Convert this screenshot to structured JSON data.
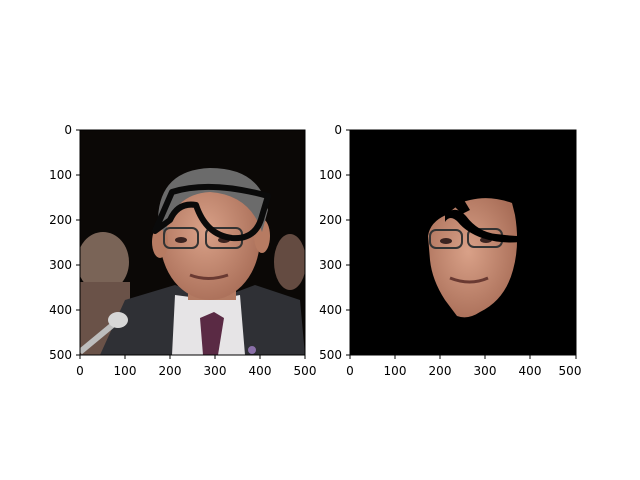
{
  "figure": {
    "panels": [
      {
        "name": "original-photo",
        "x_ticks": [
          "0",
          "100",
          "200",
          "300",
          "400",
          "500"
        ],
        "y_ticks": [
          "0",
          "100",
          "200",
          "300",
          "400",
          "500"
        ]
      },
      {
        "name": "masked-face",
        "x_ticks": [
          "0",
          "100",
          "200",
          "300",
          "400",
          "500"
        ],
        "y_ticks": [
          "0",
          "100",
          "200",
          "300",
          "400",
          "500"
        ]
      }
    ]
  },
  "chart_data": [
    {
      "type": "image",
      "xlim": [
        0,
        500
      ],
      "ylim": [
        500,
        0
      ],
      "x_ticks": [
        0,
        100,
        200,
        300,
        400,
        500
      ],
      "y_ticks": [
        0,
        100,
        200,
        300,
        400,
        500
      ]
    },
    {
      "type": "image",
      "xlim": [
        0,
        500
      ],
      "ylim": [
        500,
        0
      ],
      "x_ticks": [
        0,
        100,
        200,
        300,
        400,
        500
      ],
      "y_ticks": [
        0,
        100,
        200,
        300,
        400,
        500
      ]
    }
  ],
  "colors": {
    "background": "#0b0806",
    "skin": "#c99078",
    "suit": "#2f3035",
    "hair": "#6b6b6b",
    "tie": "#5a2a44",
    "glasses_stroke": "#0a0a0a"
  }
}
